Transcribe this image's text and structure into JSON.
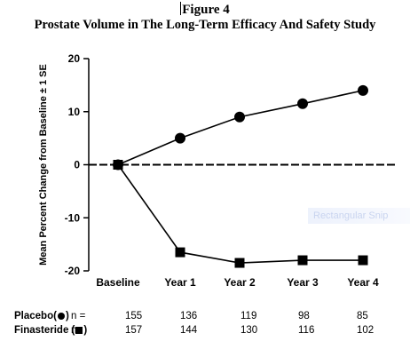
{
  "figure_label": "Figure 4",
  "title": "Prostate Volume in The Long-Term Efficacy And Safety Study",
  "watermark_text": "Rectangular Snip",
  "chart_data": {
    "type": "line",
    "categories": [
      "Baseline",
      "Year 1",
      "Year 2",
      "Year 3",
      "Year 4"
    ],
    "ylabel": "Mean Percent Change from Baseline  ± 1 SE",
    "ylim": [
      -20,
      20
    ],
    "yticks": [
      "20",
      "10",
      "0",
      "-10",
      "-20"
    ],
    "grid": false,
    "series": [
      {
        "name": "Placebo",
        "marker": "circle",
        "values": [
          0,
          5,
          9,
          11.5,
          14
        ]
      },
      {
        "name": "Finasteride",
        "marker": "square",
        "values": [
          0,
          -16.5,
          -18.5,
          -18,
          -18
        ]
      }
    ]
  },
  "n_table": {
    "rows": [
      {
        "label": "Placebo(",
        "marker": "circle",
        "label_end": ")",
        "n_label": "n =",
        "values": [
          "155",
          "136",
          "119",
          "98",
          "85"
        ]
      },
      {
        "label": "Finasteride (",
        "marker": "square",
        "label_end": ")",
        "n_label": "n=",
        "values": [
          "157",
          "144",
          "130",
          "116",
          "102"
        ]
      }
    ]
  }
}
